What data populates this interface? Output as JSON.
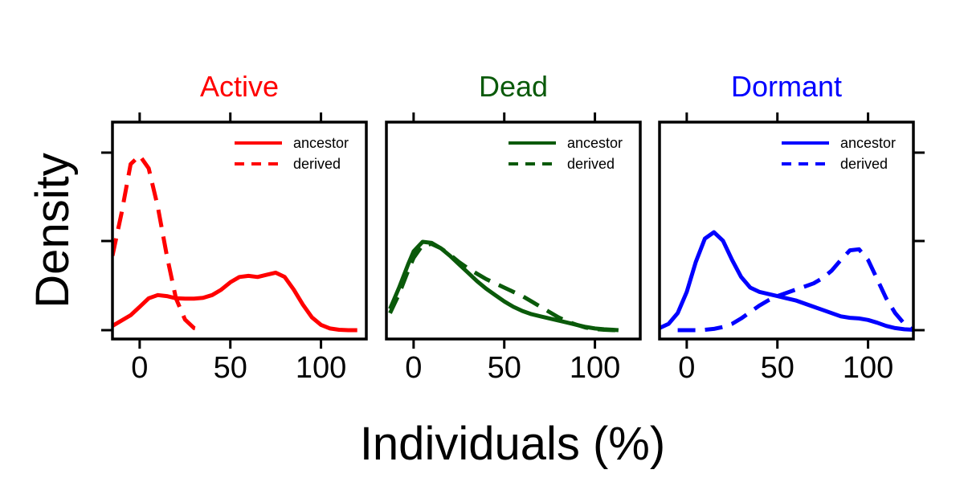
{
  "chart_data": {
    "type": "line",
    "subtype": "density",
    "xlabel": "Individuals (%)",
    "ylabel": "Density",
    "xlim": [
      -15,
      125
    ],
    "xticks": [
      0,
      50,
      100
    ],
    "y_tick_labels_shown": false,
    "legend_position": "top-right",
    "linestyles": {
      "ancestor": "solid",
      "derived": "dashed"
    },
    "panels": [
      {
        "title": "Active",
        "color": "#ff0000",
        "series": [
          {
            "name": "ancestor",
            "style": "solid",
            "x": [
              -15,
              -5,
              0,
              5,
              10,
              15,
              20,
              25,
              30,
              35,
              40,
              45,
              50,
              55,
              60,
              65,
              70,
              75,
              80,
              85,
              90,
              95,
              100,
              105,
              110,
              115,
              120
            ],
            "y": [
              0.02,
              0.07,
              0.11,
              0.15,
              0.165,
              0.16,
              0.15,
              0.148,
              0.148,
              0.152,
              0.165,
              0.19,
              0.225,
              0.25,
              0.255,
              0.25,
              0.26,
              0.27,
              0.25,
              0.19,
              0.12,
              0.06,
              0.025,
              0.008,
              0.002,
              0.0,
              0.0
            ]
          },
          {
            "name": "derived",
            "style": "dashed",
            "x": [
              -15,
              -10,
              -5,
              0,
              5,
              10,
              15,
              20,
              25,
              30,
              35
            ],
            "y": [
              0.35,
              0.55,
              0.78,
              0.82,
              0.76,
              0.58,
              0.35,
              0.15,
              0.05,
              0.01,
              0.0
            ]
          }
        ]
      },
      {
        "title": "Dead",
        "color": "#0a5a0a",
        "series": [
          {
            "name": "ancestor",
            "style": "solid",
            "x": [
              -13,
              -8,
              -3,
              0,
              5,
              10,
              15,
              20,
              25,
              30,
              35,
              40,
              45,
              50,
              55,
              60,
              65,
              70,
              75,
              80,
              85,
              90,
              95,
              100,
              105,
              110,
              113
            ],
            "y": [
              0.1,
              0.2,
              0.31,
              0.37,
              0.415,
              0.41,
              0.385,
              0.35,
              0.31,
              0.27,
              0.23,
              0.195,
              0.165,
              0.135,
              0.11,
              0.09,
              0.075,
              0.065,
              0.055,
              0.045,
              0.035,
              0.025,
              0.015,
              0.008,
              0.004,
              0.002,
              0.0
            ]
          },
          {
            "name": "derived",
            "style": "dashed",
            "x": [
              -13,
              -8,
              -3,
              0,
              5,
              10,
              15,
              20,
              25,
              30,
              35,
              40,
              45,
              50,
              55,
              60,
              65,
              70,
              75,
              80,
              85,
              90,
              95,
              100,
              105,
              110,
              113
            ],
            "y": [
              0.08,
              0.17,
              0.28,
              0.34,
              0.4,
              0.405,
              0.385,
              0.355,
              0.32,
              0.29,
              0.265,
              0.24,
              0.22,
              0.2,
              0.18,
              0.16,
              0.135,
              0.11,
              0.085,
              0.06,
              0.04,
              0.025,
              0.012,
              0.005,
              0.002,
              0.0,
              0.0
            ]
          }
        ]
      },
      {
        "title": "Dormant",
        "color": "#0000ff",
        "series": [
          {
            "name": "ancestor",
            "style": "solid",
            "x": [
              -15,
              -10,
              -5,
              0,
              5,
              10,
              15,
              20,
              25,
              30,
              35,
              40,
              45,
              50,
              55,
              60,
              65,
              70,
              75,
              80,
              85,
              90,
              95,
              100,
              105,
              110,
              115,
              120,
              125
            ],
            "y": [
              0.01,
              0.03,
              0.08,
              0.18,
              0.32,
              0.43,
              0.46,
              0.42,
              0.33,
              0.25,
              0.2,
              0.18,
              0.17,
              0.16,
              0.15,
              0.14,
              0.125,
              0.11,
              0.095,
              0.08,
              0.065,
              0.058,
              0.055,
              0.048,
              0.035,
              0.02,
              0.01,
              0.004,
              0.002
            ]
          },
          {
            "name": "derived",
            "style": "dashed",
            "x": [
              -5,
              0,
              5,
              10,
              15,
              20,
              25,
              30,
              35,
              40,
              45,
              50,
              55,
              60,
              65,
              70,
              75,
              80,
              85,
              90,
              95,
              100,
              105,
              110,
              115,
              120,
              125
            ],
            "y": [
              0.0,
              0.0,
              0.0,
              0.002,
              0.006,
              0.015,
              0.03,
              0.055,
              0.085,
              0.115,
              0.14,
              0.16,
              0.175,
              0.19,
              0.205,
              0.22,
              0.245,
              0.28,
              0.33,
              0.375,
              0.38,
              0.33,
              0.24,
              0.15,
              0.08,
              0.03,
              0.0
            ]
          }
        ]
      }
    ]
  }
}
